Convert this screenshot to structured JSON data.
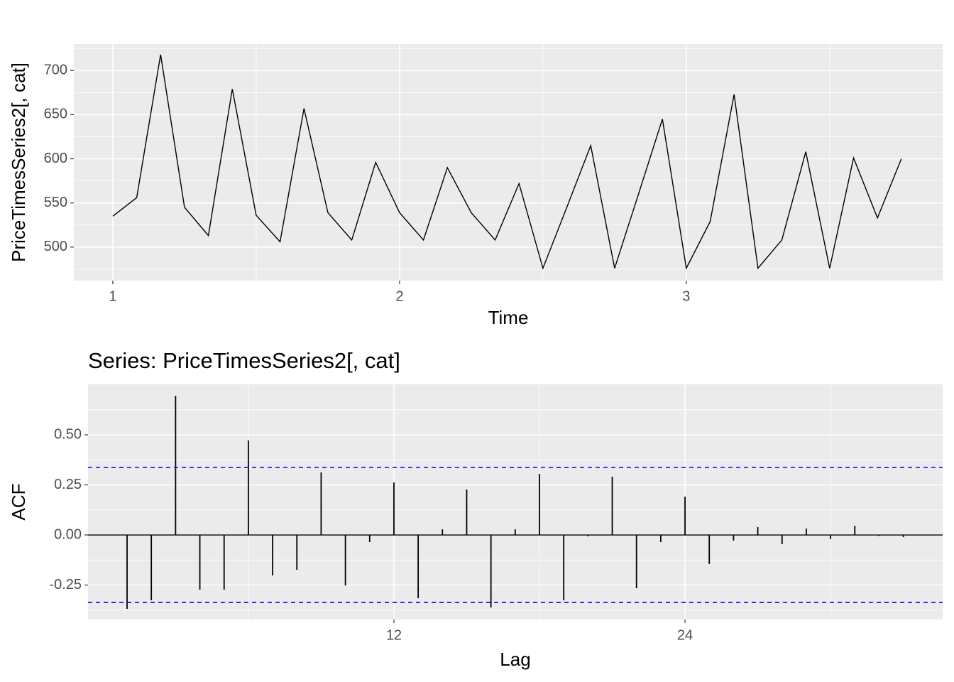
{
  "chart_data": [
    {
      "type": "line",
      "x_label": "Time",
      "y_label": "PriceTimesSeries2[, cat]",
      "x": [
        1,
        1.0833,
        1.1667,
        1.25,
        1.3333,
        1.4167,
        1.5,
        1.5833,
        1.6667,
        1.75,
        1.8333,
        1.9167,
        2,
        2.0833,
        2.1667,
        2.25,
        2.3333,
        2.4167,
        2.5,
        2.5833,
        2.6667,
        2.75,
        2.8333,
        2.9167,
        3,
        3.0833,
        3.1667,
        3.25,
        3.3333,
        3.4167,
        3.5,
        3.5833,
        3.6667,
        3.75
      ],
      "values": [
        535,
        556,
        718,
        545,
        513,
        679,
        536,
        506,
        657,
        539,
        508,
        596,
        539,
        508,
        590,
        539,
        508,
        572,
        476,
        545,
        615,
        476,
        560,
        645,
        476,
        529,
        673,
        476,
        508,
        608,
        476,
        601,
        533,
        600
      ],
      "color": "#000000",
      "xlim": [
        0.864,
        3.894
      ],
      "xticks": [
        1,
        2,
        3
      ],
      "ylim": [
        462,
        730
      ],
      "yticks": [
        500,
        550,
        600,
        650,
        700
      ],
      "grid": true
    },
    {
      "type": "acf",
      "title": "Series: PriceTimesSeries2[, cat]",
      "x_label": "Lag",
      "y_label": "ACF",
      "x": [
        1,
        2,
        3,
        4,
        5,
        6,
        7,
        8,
        9,
        10,
        11,
        12,
        13,
        14,
        15,
        16,
        17,
        18,
        19,
        20,
        21,
        22,
        23,
        24,
        25,
        26,
        27,
        28,
        29,
        30,
        31,
        32,
        33
      ],
      "values": [
        -0.369,
        -0.326,
        0.695,
        -0.273,
        -0.273,
        0.472,
        -0.202,
        -0.174,
        0.312,
        -0.252,
        -0.035,
        0.262,
        -0.316,
        0.028,
        0.227,
        -0.362,
        0.028,
        0.305,
        -0.326,
        -0.007,
        0.291,
        -0.266,
        -0.035,
        0.191,
        -0.145,
        -0.028,
        0.039,
        -0.046,
        0.032,
        -0.021,
        0.046,
        -0.005,
        -0.011
      ],
      "color": "#000000",
      "conf_limits": [
        -0.337,
        0.337
      ],
      "conf_color": "#0000ff",
      "xlim": [
        -0.61,
        34.62
      ],
      "xticks": [
        12,
        24
      ],
      "ylim": [
        -0.422,
        0.752
      ],
      "yticks": [
        {
          "value": -0.25,
          "label": "-0.25"
        },
        {
          "value": 0,
          "label": "0.00"
        },
        {
          "value": 0.25,
          "label": "0.25"
        },
        {
          "value": 0.5,
          "label": "0.50"
        }
      ],
      "grid": true
    }
  ]
}
